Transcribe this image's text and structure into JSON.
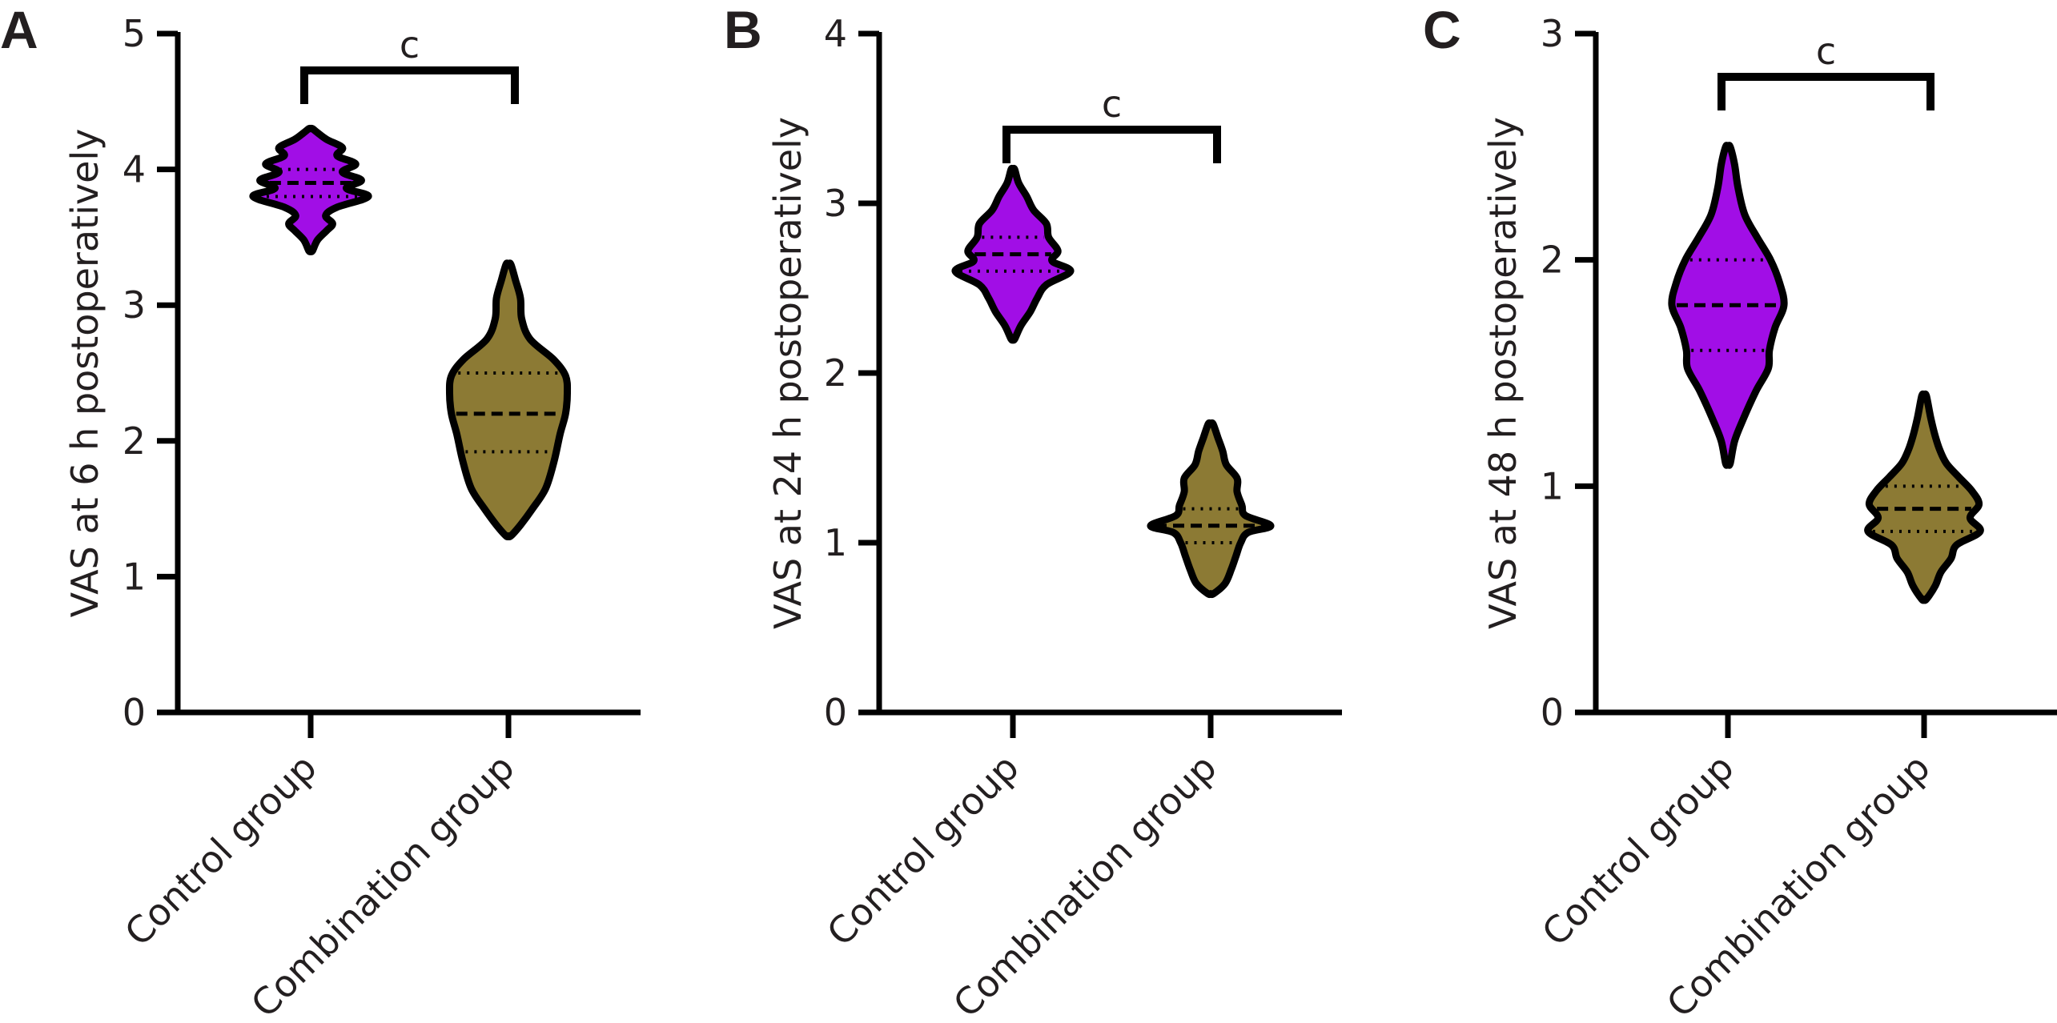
{
  "colors": {
    "control": "#a10ee6",
    "combination": "#8c7a34",
    "outline": "#000000",
    "text": "#231f20"
  },
  "chart_data": [
    {
      "type": "violin",
      "panel": "A",
      "ylabel": "VAS at 6 h postoperatively",
      "ylim": [
        0,
        5
      ],
      "yticks": [
        "0",
        "1",
        "2",
        "3",
        "4",
        "5"
      ],
      "categories": [
        "Control group",
        "Combination group"
      ],
      "significance": "c",
      "series": [
        {
          "category": "Control group",
          "color": "control",
          "median": 3.9,
          "q1": 3.8,
          "q3": 4.0,
          "min": 3.4,
          "max": 4.3,
          "profile": [
            [
              3.4,
              0.03
            ],
            [
              3.48,
              0.12
            ],
            [
              3.55,
              0.28
            ],
            [
              3.6,
              0.38
            ],
            [
              3.66,
              0.26
            ],
            [
              3.72,
              0.45
            ],
            [
              3.8,
              1.0
            ],
            [
              3.86,
              0.62
            ],
            [
              3.92,
              0.88
            ],
            [
              3.98,
              0.55
            ],
            [
              4.04,
              0.78
            ],
            [
              4.1,
              0.46
            ],
            [
              4.16,
              0.55
            ],
            [
              4.22,
              0.28
            ],
            [
              4.27,
              0.12
            ],
            [
              4.3,
              0.03
            ]
          ]
        },
        {
          "category": "Combination group",
          "color": "combination",
          "median": 2.2,
          "q1": 1.92,
          "q3": 2.5,
          "min": 1.3,
          "max": 3.3,
          "profile": [
            [
              1.3,
              0.04
            ],
            [
              1.38,
              0.2
            ],
            [
              1.5,
              0.4
            ],
            [
              1.65,
              0.62
            ],
            [
              1.85,
              0.76
            ],
            [
              2.05,
              0.86
            ],
            [
              2.2,
              0.95
            ],
            [
              2.35,
              0.98
            ],
            [
              2.48,
              0.95
            ],
            [
              2.6,
              0.75
            ],
            [
              2.75,
              0.36
            ],
            [
              2.9,
              0.22
            ],
            [
              3.05,
              0.2
            ],
            [
              3.18,
              0.12
            ],
            [
              3.3,
              0.04
            ]
          ]
        }
      ]
    },
    {
      "type": "violin",
      "panel": "B",
      "ylabel": "VAS at 24 h postoperatively",
      "ylim": [
        0,
        4
      ],
      "yticks": [
        "0",
        "1",
        "2",
        "3",
        "4"
      ],
      "categories": [
        "Control group",
        "Combination group"
      ],
      "significance": "c",
      "series": [
        {
          "category": "Control group",
          "color": "control",
          "median": 2.7,
          "q1": 2.6,
          "q3": 2.8,
          "min": 2.2,
          "max": 3.2,
          "profile": [
            [
              2.2,
              0.03
            ],
            [
              2.28,
              0.14
            ],
            [
              2.36,
              0.3
            ],
            [
              2.44,
              0.42
            ],
            [
              2.52,
              0.58
            ],
            [
              2.6,
              1.0
            ],
            [
              2.66,
              0.68
            ],
            [
              2.72,
              0.78
            ],
            [
              2.8,
              0.62
            ],
            [
              2.88,
              0.58
            ],
            [
              2.96,
              0.36
            ],
            [
              3.04,
              0.24
            ],
            [
              3.12,
              0.1
            ],
            [
              3.2,
              0.03
            ]
          ]
        },
        {
          "category": "Combination group",
          "color": "combination",
          "median": 1.1,
          "q1": 1.0,
          "q3": 1.2,
          "min": 0.7,
          "max": 1.7,
          "profile": [
            [
              0.7,
              0.05
            ],
            [
              0.76,
              0.24
            ],
            [
              0.84,
              0.34
            ],
            [
              0.92,
              0.42
            ],
            [
              1.0,
              0.5
            ],
            [
              1.06,
              0.62
            ],
            [
              1.1,
              1.0
            ],
            [
              1.16,
              0.58
            ],
            [
              1.22,
              0.52
            ],
            [
              1.3,
              0.44
            ],
            [
              1.38,
              0.44
            ],
            [
              1.46,
              0.26
            ],
            [
              1.54,
              0.2
            ],
            [
              1.62,
              0.12
            ],
            [
              1.7,
              0.04
            ]
          ]
        }
      ]
    },
    {
      "type": "violin",
      "panel": "C",
      "ylabel": "VAS at 48 h postoperatively",
      "ylim": [
        0,
        3
      ],
      "yticks": [
        "0",
        "1",
        "2",
        "3"
      ],
      "categories": [
        "Control group",
        "Combination group"
      ],
      "significance": "c",
      "series": [
        {
          "category": "Control group",
          "color": "control",
          "median": 1.8,
          "q1": 1.6,
          "q3": 2.0,
          "min": 1.1,
          "max": 2.5,
          "profile": [
            [
              1.1,
              0.04
            ],
            [
              1.2,
              0.12
            ],
            [
              1.3,
              0.28
            ],
            [
              1.42,
              0.5
            ],
            [
              1.52,
              0.72
            ],
            [
              1.6,
              0.74
            ],
            [
              1.7,
              0.84
            ],
            [
              1.8,
              1.0
            ],
            [
              1.9,
              0.92
            ],
            [
              2.0,
              0.76
            ],
            [
              2.1,
              0.52
            ],
            [
              2.2,
              0.3
            ],
            [
              2.32,
              0.18
            ],
            [
              2.42,
              0.12
            ],
            [
              2.5,
              0.04
            ]
          ]
        },
        {
          "category": "Combination group",
          "color": "combination",
          "median": 0.9,
          "q1": 0.8,
          "q3": 1.0,
          "min": 0.5,
          "max": 1.4,
          "profile": [
            [
              0.5,
              0.04
            ],
            [
              0.56,
              0.2
            ],
            [
              0.62,
              0.3
            ],
            [
              0.68,
              0.48
            ],
            [
              0.74,
              0.58
            ],
            [
              0.8,
              1.0
            ],
            [
              0.86,
              0.82
            ],
            [
              0.92,
              0.98
            ],
            [
              0.98,
              0.85
            ],
            [
              1.04,
              0.62
            ],
            [
              1.1,
              0.4
            ],
            [
              1.16,
              0.28
            ],
            [
              1.22,
              0.2
            ],
            [
              1.3,
              0.12
            ],
            [
              1.4,
              0.04
            ]
          ]
        }
      ]
    }
  ]
}
